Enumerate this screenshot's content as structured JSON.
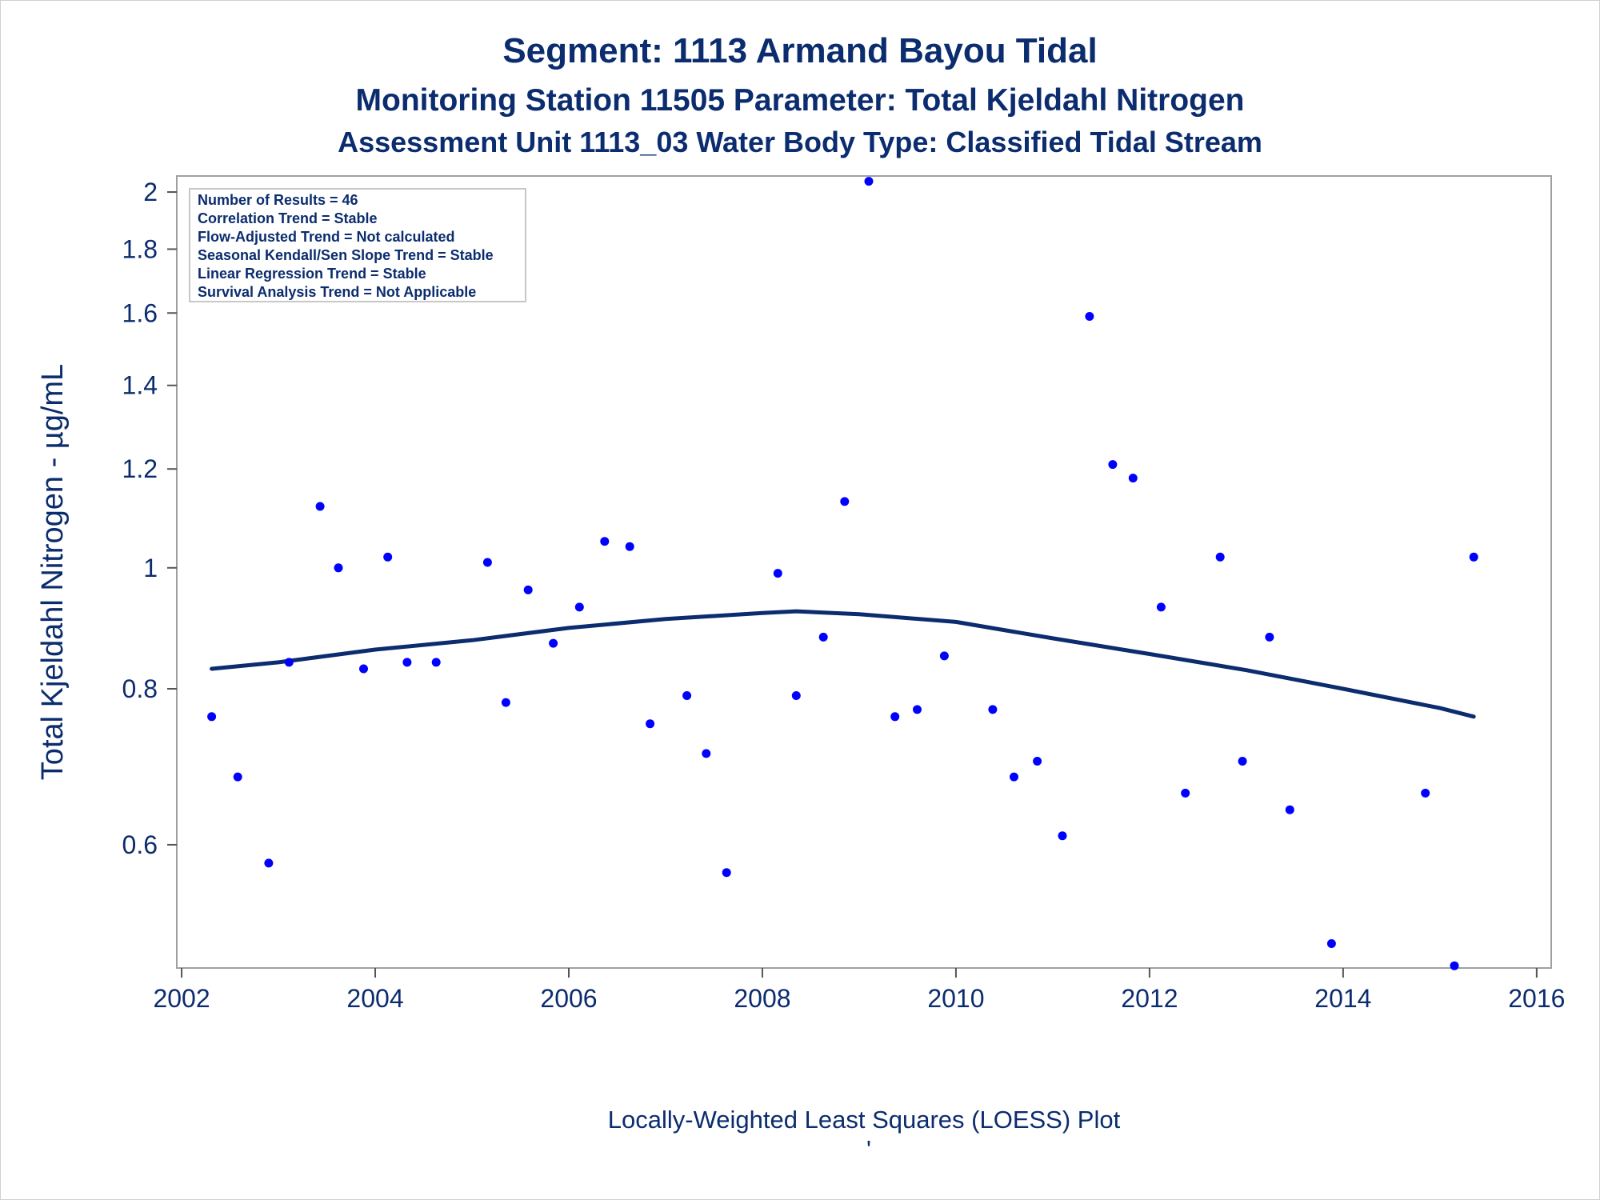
{
  "titles": {
    "line1": "Segment: 1113  Armand Bayou Tidal",
    "line2": "Monitoring Station 11505 Parameter: Total Kjeldahl Nitrogen",
    "line3": "Assessment Unit 1113_03   Water Body Type: Classified Tidal Stream"
  },
  "info_box": [
    "Number of Results = 46",
    "Correlation Trend = Stable",
    "Flow-Adjusted Trend = Not calculated",
    "Seasonal Kendall/Sen Slope Trend = Stable",
    "Linear Regression Trend = Stable",
    "Survival Analysis Trend = Not Applicable"
  ],
  "footnote": "Locally-Weighted Least Squares (LOESS) Plot",
  "footnote_mark": "'",
  "colors": {
    "text": "#0b2c6e",
    "points": "#0000ff",
    "loess": "#0b2c6e",
    "frame": "#a0a0a0"
  },
  "chart_data": {
    "type": "scatter",
    "title": "Segment: 1113  Armand Bayou Tidal",
    "xlabel": "",
    "ylabel": "Total Kjeldahl Nitrogen -  µg/mL",
    "x_scale": "linear",
    "y_scale": "log",
    "xlim": [
      2001.95,
      2016.15
    ],
    "ylim": [
      0.478,
      2.06
    ],
    "x_ticks": [
      2002,
      2004,
      2006,
      2008,
      2010,
      2012,
      2014,
      2016
    ],
    "x_tick_labels": [
      "2002",
      "2004",
      "2006",
      "2008",
      "2010",
      "2012",
      "2014",
      "2016"
    ],
    "y_ticks": [
      0.6,
      0.8,
      1,
      1.2,
      1.4,
      1.6,
      1.8,
      2
    ],
    "y_tick_labels": [
      "0.6",
      "0.8",
      "1",
      "1.2",
      "1.4",
      "1.6",
      "1.8",
      "2"
    ],
    "grid": false,
    "legend": "none",
    "points": [
      {
        "x": 2002.31,
        "y": 0.76
      },
      {
        "x": 2002.58,
        "y": 0.68
      },
      {
        "x": 2002.9,
        "y": 0.58
      },
      {
        "x": 2003.11,
        "y": 0.84
      },
      {
        "x": 2003.43,
        "y": 1.12
      },
      {
        "x": 2003.62,
        "y": 1.0
      },
      {
        "x": 2003.88,
        "y": 0.83
      },
      {
        "x": 2004.13,
        "y": 1.02
      },
      {
        "x": 2004.33,
        "y": 0.84
      },
      {
        "x": 2004.63,
        "y": 0.84
      },
      {
        "x": 2005.16,
        "y": 1.01
      },
      {
        "x": 2005.35,
        "y": 0.78
      },
      {
        "x": 2005.58,
        "y": 0.96
      },
      {
        "x": 2005.84,
        "y": 0.87
      },
      {
        "x": 2006.11,
        "y": 0.93
      },
      {
        "x": 2006.37,
        "y": 1.05
      },
      {
        "x": 2006.63,
        "y": 1.04
      },
      {
        "x": 2006.84,
        "y": 0.75
      },
      {
        "x": 2007.22,
        "y": 0.79
      },
      {
        "x": 2007.42,
        "y": 0.71
      },
      {
        "x": 2007.63,
        "y": 0.57
      },
      {
        "x": 2008.16,
        "y": 0.99
      },
      {
        "x": 2008.35,
        "y": 0.79
      },
      {
        "x": 2008.63,
        "y": 0.88
      },
      {
        "x": 2008.85,
        "y": 1.13
      },
      {
        "x": 2009.1,
        "y": 2.04
      },
      {
        "x": 2009.37,
        "y": 0.76
      },
      {
        "x": 2009.6,
        "y": 0.77
      },
      {
        "x": 2009.88,
        "y": 0.85
      },
      {
        "x": 2010.38,
        "y": 0.77
      },
      {
        "x": 2010.6,
        "y": 0.68
      },
      {
        "x": 2010.84,
        "y": 0.7
      },
      {
        "x": 2011.1,
        "y": 0.61
      },
      {
        "x": 2011.38,
        "y": 1.59
      },
      {
        "x": 2011.62,
        "y": 1.21
      },
      {
        "x": 2011.83,
        "y": 1.18
      },
      {
        "x": 2012.12,
        "y": 0.93
      },
      {
        "x": 2012.37,
        "y": 0.66
      },
      {
        "x": 2012.73,
        "y": 1.02
      },
      {
        "x": 2012.96,
        "y": 0.7
      },
      {
        "x": 2013.24,
        "y": 0.88
      },
      {
        "x": 2013.45,
        "y": 0.64
      },
      {
        "x": 2013.88,
        "y": 0.5
      },
      {
        "x": 2014.85,
        "y": 0.66
      },
      {
        "x": 2015.15,
        "y": 0.48
      },
      {
        "x": 2015.35,
        "y": 1.02
      }
    ],
    "loess": [
      {
        "x": 2002.31,
        "y": 0.83
      },
      {
        "x": 2003.0,
        "y": 0.84
      },
      {
        "x": 2004.0,
        "y": 0.86
      },
      {
        "x": 2005.0,
        "y": 0.875
      },
      {
        "x": 2006.0,
        "y": 0.895
      },
      {
        "x": 2007.0,
        "y": 0.91
      },
      {
        "x": 2008.0,
        "y": 0.92
      },
      {
        "x": 2008.35,
        "y": 0.923
      },
      {
        "x": 2009.0,
        "y": 0.918
      },
      {
        "x": 2010.0,
        "y": 0.905
      },
      {
        "x": 2011.0,
        "y": 0.878
      },
      {
        "x": 2012.0,
        "y": 0.853
      },
      {
        "x": 2013.0,
        "y": 0.828
      },
      {
        "x": 2014.0,
        "y": 0.8
      },
      {
        "x": 2015.0,
        "y": 0.772
      },
      {
        "x": 2015.35,
        "y": 0.76
      }
    ]
  }
}
